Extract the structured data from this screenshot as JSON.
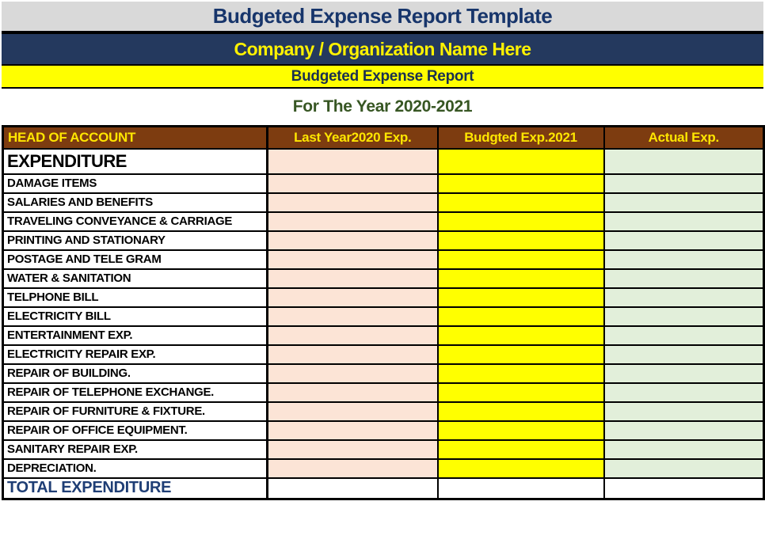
{
  "page": {
    "title": "Budgeted Expense Report Template",
    "company_name": "Company / Organization Name Here",
    "report_title": "Budgeted Expense Report",
    "year_line": "For The Year 2020-2021"
  },
  "table": {
    "headers": [
      "HEAD OF ACCOUNT",
      "Last Year2020 Exp.",
      "Budgted Exp.2021",
      "Actual Exp."
    ],
    "section_label": "EXPENDITURE",
    "rows": [
      "DAMAGE ITEMS",
      "SALARIES AND BENEFITS",
      "TRAVELING CONVEYANCE & CARRIAGE",
      "PRINTING AND STATIONARY",
      "POSTAGE AND TELE GRAM",
      "WATER & SANITATION",
      "TELPHONE BILL",
      "ELECTRICITY BILL",
      "ENTERTAINMENT EXP.",
      "ELECTRICITY REPAIR EXP.",
      "REPAIR OF BUILDING.",
      "REPAIR OF TELEPHONE EXCHANGE.",
      "REPAIR OF FURNITURE & FIXTURE.",
      "REPAIR OF OFFICE EQUIPMENT.",
      "SANITARY REPAIR EXP.",
      "DEPRECIATION."
    ],
    "total_label": "TOTAL EXPENDITURE",
    "cell_values": {
      "last_year": "",
      "budgeted": "",
      "actual": ""
    }
  },
  "colors": {
    "title_band_bg": "#d9d9d9",
    "title_text": "#17356b",
    "company_band_bg": "#24395e",
    "company_text": "#fff200",
    "report_band_bg": "#ffff00",
    "report_text": "#1a3050",
    "year_text": "#375623",
    "header_row_bg": "#7d3c10",
    "header_row_text": "#ffe600",
    "last_year_col_bg": "#fce4d6",
    "budgeted_col_bg": "#ffff00",
    "actual_col_bg": "#e2efda",
    "total_text": "#1f3e75"
  }
}
